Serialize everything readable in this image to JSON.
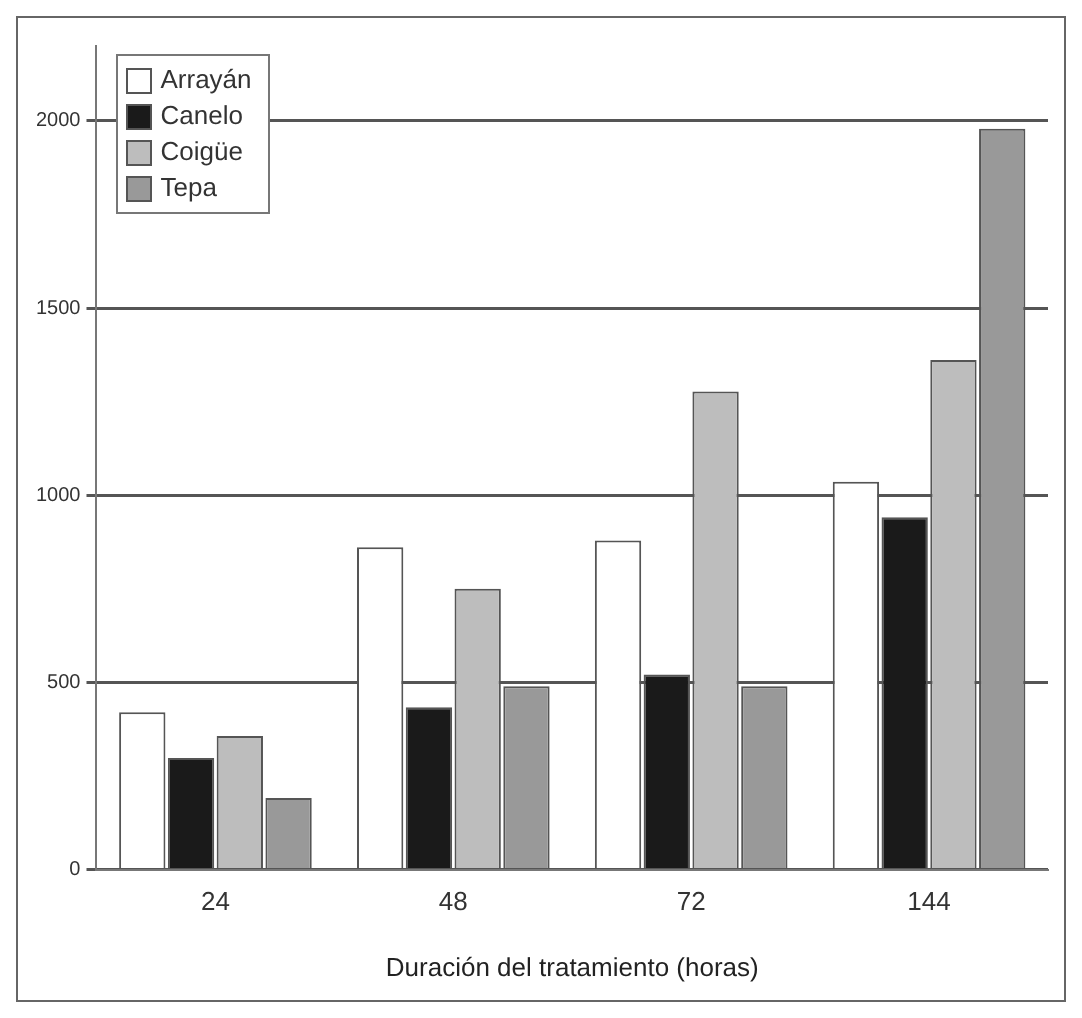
{
  "chart_data": {
    "type": "bar",
    "xlabel": "Duración del tratamiento (horas)",
    "categories": [
      "24",
      "48",
      "72",
      "144"
    ],
    "series": [
      {
        "name": "Arrayán",
        "color": "#ffffff",
        "values": [
          420,
          861,
          879,
          1036
        ]
      },
      {
        "name": "Canelo",
        "color": "#1a1a1a",
        "values": [
          298,
          434,
          521,
          941
        ]
      },
      {
        "name": "Coigüe",
        "color": "#bdbdbd",
        "values": [
          357,
          750,
          1277,
          1361
        ]
      },
      {
        "name": "Tepa",
        "color": "#999999",
        "values": [
          191,
          490,
          490,
          1979
        ]
      }
    ],
    "ylim": [
      0,
      2200
    ],
    "yticks": [
      0,
      500,
      1000,
      1500,
      2000
    ],
    "grid": "y",
    "legend": "top left"
  }
}
